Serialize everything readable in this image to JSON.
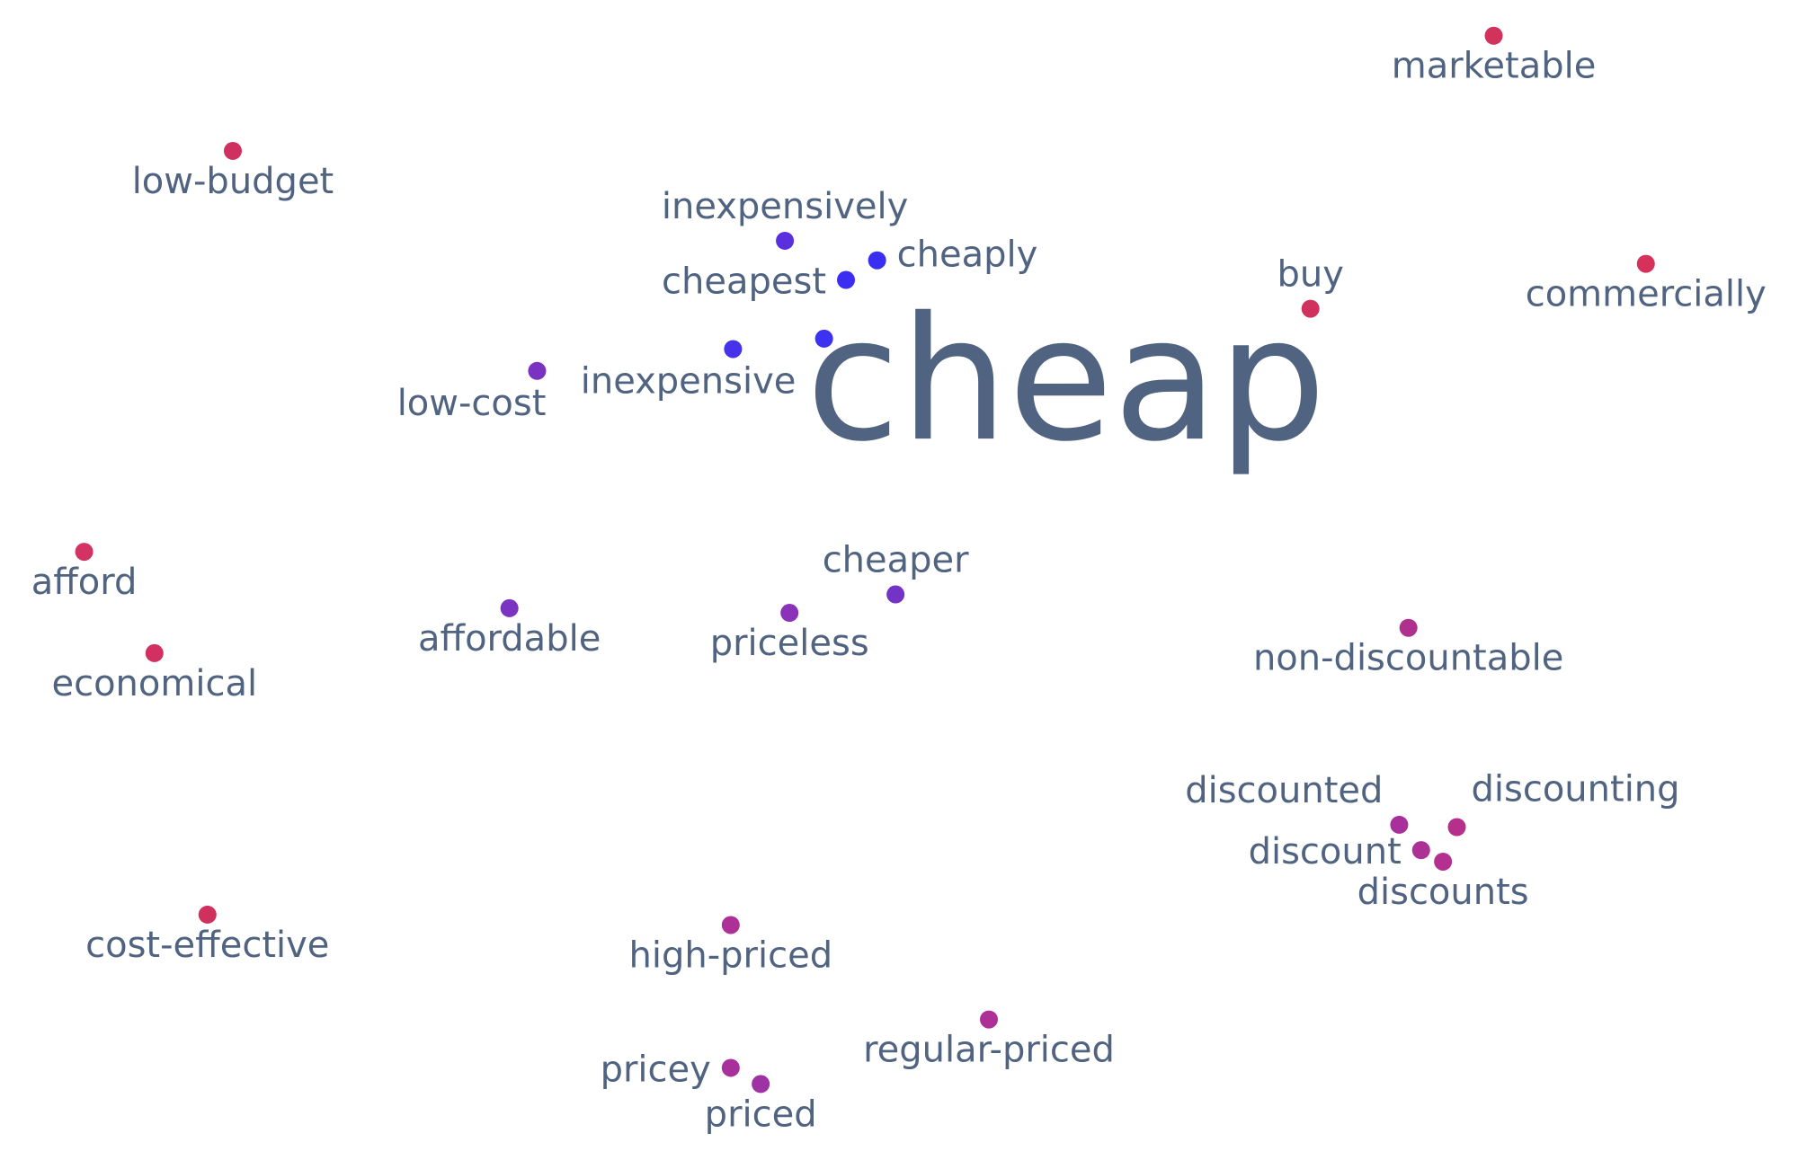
{
  "chart_data": {
    "type": "scatter",
    "title": "",
    "xlabel": "",
    "ylabel": "",
    "grid": false,
    "legend": "none",
    "xlim": [
      0,
      1560
    ],
    "ylim": [
      0,
      1007
    ],
    "label_color": "#506380",
    "center_word": {
      "label": "cheap",
      "x": 925,
      "y": 340
    },
    "points": [
      {
        "label": "marketable",
        "x": 1296,
        "y": 31,
        "label_pos": "below",
        "color": "#d1335a"
      },
      {
        "label": "low-budget",
        "x": 202,
        "y": 131,
        "label_pos": "below",
        "color": "#cf3060"
      },
      {
        "label": "inexpensively",
        "x": 681,
        "y": 209,
        "label_pos": "above",
        "color": "#5a2fe0"
      },
      {
        "label": "cheaply",
        "x": 761,
        "y": 226,
        "label_pos": "right",
        "color": "#3a2ff0"
      },
      {
        "label": "cheapest",
        "x": 734,
        "y": 243,
        "label_pos": "left",
        "color": "#3b2ef2"
      },
      {
        "label": "buy",
        "x": 1137,
        "y": 268,
        "label_pos": "above",
        "color": "#d1315e"
      },
      {
        "label": "commercially",
        "x": 1428,
        "y": 229,
        "label_pos": "below",
        "color": "#d5315a"
      },
      {
        "label": "inexpensive",
        "x": 636,
        "y": 303,
        "label_pos": "below-left",
        "color": "#4532ea"
      },
      {
        "label": "",
        "x": 715,
        "y": 294,
        "label_pos": "none",
        "color": "#3c32f2"
      },
      {
        "label": "low-cost",
        "x": 466,
        "y": 322,
        "label_pos": "below-left",
        "color": "#7a33c0"
      },
      {
        "label": "afford",
        "x": 73,
        "y": 479,
        "label_pos": "below",
        "color": "#d33362"
      },
      {
        "label": "cheaper",
        "x": 777,
        "y": 516,
        "label_pos": "above",
        "color": "#7233c6"
      },
      {
        "label": "affordable",
        "x": 442,
        "y": 528,
        "label_pos": "below",
        "color": "#7a33c2"
      },
      {
        "label": "priceless",
        "x": 685,
        "y": 532,
        "label_pos": "below",
        "color": "#8a33b8"
      },
      {
        "label": "non-discountable",
        "x": 1222,
        "y": 545,
        "label_pos": "below",
        "color": "#b0308e"
      },
      {
        "label": "economical",
        "x": 134,
        "y": 567,
        "label_pos": "below",
        "color": "#d13060"
      },
      {
        "label": "discounted",
        "x": 1214,
        "y": 716,
        "label_pos": "above-left",
        "color": "#a8309a"
      },
      {
        "label": "discounting",
        "x": 1264,
        "y": 718,
        "label_pos": "above-right",
        "color": "#b5308a"
      },
      {
        "label": "discount",
        "x": 1233,
        "y": 738,
        "label_pos": "left",
        "color": "#ad3095"
      },
      {
        "label": "discounts",
        "x": 1252,
        "y": 748,
        "label_pos": "below",
        "color": "#b33090"
      },
      {
        "label": "cost-effective",
        "x": 180,
        "y": 794,
        "label_pos": "below",
        "color": "#cf305e"
      },
      {
        "label": "high-priced",
        "x": 634,
        "y": 803,
        "label_pos": "below",
        "color": "#ae3096"
      },
      {
        "label": "regular-priced",
        "x": 858,
        "y": 885,
        "label_pos": "below",
        "color": "#ad3096"
      },
      {
        "label": "pricey",
        "x": 634,
        "y": 927,
        "label_pos": "left",
        "color": "#a8309c"
      },
      {
        "label": "priced",
        "x": 660,
        "y": 941,
        "label_pos": "below",
        "color": "#9e31a4"
      }
    ]
  }
}
